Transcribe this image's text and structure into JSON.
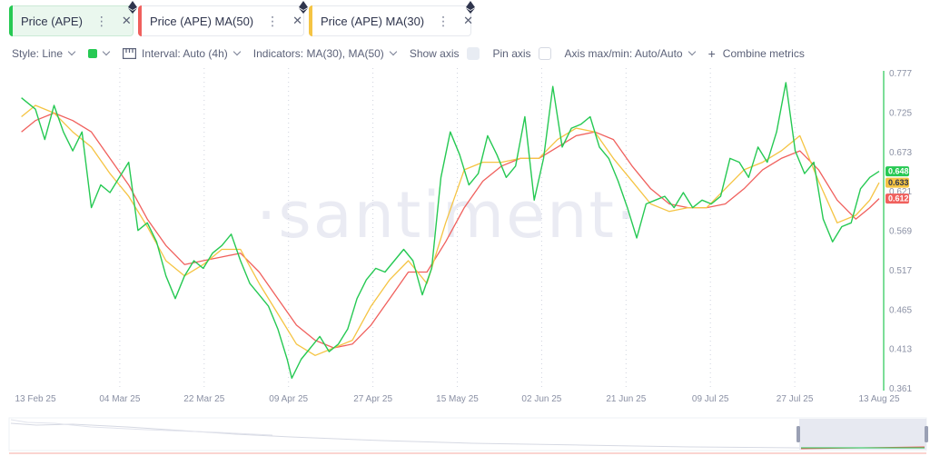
{
  "tabs": [
    {
      "label": "Price (APE)",
      "color": "#26c953",
      "active": true
    },
    {
      "label": "Price (APE) MA(50)",
      "color": "#f0605d",
      "active": false
    },
    {
      "label": "Price (APE) MA(30)",
      "color": "#f5c443",
      "active": false
    }
  ],
  "toolbar": {
    "style": "Style: Line",
    "interval": "Interval: Auto (4h)",
    "indicators": "Indicators: MA(30), MA(50)",
    "show_axis": "Show axis",
    "pin_axis": "Pin axis",
    "axis_maxmin": "Axis max/min: Auto/Auto",
    "combine": "Combine metrics"
  },
  "watermark": "·santiment·",
  "chart_data": {
    "type": "line",
    "x_ticks": [
      "13 Feb 25",
      "04 Mar 25",
      "22 Mar 25",
      "09 Apr 25",
      "27 Apr 25",
      "15 May 25",
      "02 Jun 25",
      "21 Jun 25",
      "09 Jul 25",
      "27 Jul 25",
      "13 Aug 25"
    ],
    "y_ticks": [
      "0.777",
      "0.725",
      "0.673",
      "0.621",
      "0.569",
      "0.517",
      "0.465",
      "0.413",
      "0.361"
    ],
    "ylim": [
      0.361,
      0.777
    ],
    "xlim": [
      "2025-02-13",
      "2025-08-13"
    ],
    "series": [
      {
        "name": "Price (APE)",
        "color": "#26c953",
        "last_value": "0.648",
        "points": [
          [
            "2025-02-10",
            0.745
          ],
          [
            "2025-02-13",
            0.73
          ],
          [
            "2025-02-15",
            0.69
          ],
          [
            "2025-02-17",
            0.735
          ],
          [
            "2025-02-19",
            0.7
          ],
          [
            "2025-02-21",
            0.675
          ],
          [
            "2025-02-23",
            0.7
          ],
          [
            "2025-02-25",
            0.6
          ],
          [
            "2025-02-27",
            0.63
          ],
          [
            "2025-03-01",
            0.62
          ],
          [
            "2025-03-03",
            0.64
          ],
          [
            "2025-03-05",
            0.66
          ],
          [
            "2025-03-07",
            0.57
          ],
          [
            "2025-03-09",
            0.58
          ],
          [
            "2025-03-11",
            0.555
          ],
          [
            "2025-03-13",
            0.51
          ],
          [
            "2025-03-15",
            0.48
          ],
          [
            "2025-03-17",
            0.51
          ],
          [
            "2025-03-19",
            0.53
          ],
          [
            "2025-03-21",
            0.52
          ],
          [
            "2025-03-23",
            0.54
          ],
          [
            "2025-03-25",
            0.55
          ],
          [
            "2025-03-27",
            0.565
          ],
          [
            "2025-03-29",
            0.53
          ],
          [
            "2025-03-31",
            0.5
          ],
          [
            "2025-04-02",
            0.485
          ],
          [
            "2025-04-04",
            0.47
          ],
          [
            "2025-04-06",
            0.44
          ],
          [
            "2025-04-08",
            0.4
          ],
          [
            "2025-04-09",
            0.375
          ],
          [
            "2025-04-11",
            0.4
          ],
          [
            "2025-04-13",
            0.415
          ],
          [
            "2025-04-15",
            0.43
          ],
          [
            "2025-04-17",
            0.41
          ],
          [
            "2025-04-19",
            0.42
          ],
          [
            "2025-04-21",
            0.44
          ],
          [
            "2025-04-23",
            0.48
          ],
          [
            "2025-04-25",
            0.505
          ],
          [
            "2025-04-27",
            0.52
          ],
          [
            "2025-04-29",
            0.515
          ],
          [
            "2025-05-01",
            0.53
          ],
          [
            "2025-05-03",
            0.545
          ],
          [
            "2025-05-05",
            0.53
          ],
          [
            "2025-05-07",
            0.485
          ],
          [
            "2025-05-09",
            0.52
          ],
          [
            "2025-05-11",
            0.64
          ],
          [
            "2025-05-13",
            0.7
          ],
          [
            "2025-05-15",
            0.67
          ],
          [
            "2025-05-17",
            0.63
          ],
          [
            "2025-05-19",
            0.645
          ],
          [
            "2025-05-21",
            0.695
          ],
          [
            "2025-05-23",
            0.67
          ],
          [
            "2025-05-25",
            0.64
          ],
          [
            "2025-05-27",
            0.655
          ],
          [
            "2025-05-29",
            0.72
          ],
          [
            "2025-05-31",
            0.61
          ],
          [
            "2025-06-02",
            0.665
          ],
          [
            "2025-06-04",
            0.76
          ],
          [
            "2025-06-06",
            0.68
          ],
          [
            "2025-06-08",
            0.705
          ],
          [
            "2025-06-10",
            0.71
          ],
          [
            "2025-06-12",
            0.72
          ],
          [
            "2025-06-14",
            0.68
          ],
          [
            "2025-06-16",
            0.665
          ],
          [
            "2025-06-18",
            0.635
          ],
          [
            "2025-06-20",
            0.6
          ],
          [
            "2025-06-22",
            0.56
          ],
          [
            "2025-06-24",
            0.605
          ],
          [
            "2025-06-26",
            0.61
          ],
          [
            "2025-06-28",
            0.615
          ],
          [
            "2025-06-30",
            0.6
          ],
          [
            "2025-07-02",
            0.62
          ],
          [
            "2025-07-04",
            0.6
          ],
          [
            "2025-07-06",
            0.61
          ],
          [
            "2025-07-08",
            0.605
          ],
          [
            "2025-07-10",
            0.615
          ],
          [
            "2025-07-12",
            0.665
          ],
          [
            "2025-07-14",
            0.66
          ],
          [
            "2025-07-16",
            0.64
          ],
          [
            "2025-07-18",
            0.68
          ],
          [
            "2025-07-20",
            0.66
          ],
          [
            "2025-07-22",
            0.7
          ],
          [
            "2025-07-24",
            0.765
          ],
          [
            "2025-07-26",
            0.675
          ],
          [
            "2025-07-28",
            0.645
          ],
          [
            "2025-07-30",
            0.66
          ],
          [
            "2025-08-01",
            0.585
          ],
          [
            "2025-08-03",
            0.555
          ],
          [
            "2025-08-05",
            0.575
          ],
          [
            "2025-08-07",
            0.58
          ],
          [
            "2025-08-09",
            0.625
          ],
          [
            "2025-08-11",
            0.64
          ],
          [
            "2025-08-13",
            0.648
          ]
        ]
      },
      {
        "name": "Price (APE) MA(50)",
        "color": "#f0605d",
        "last_value": "0.612",
        "points": [
          [
            "2025-02-10",
            0.7
          ],
          [
            "2025-02-13",
            0.715
          ],
          [
            "2025-02-17",
            0.725
          ],
          [
            "2025-02-21",
            0.715
          ],
          [
            "2025-02-25",
            0.7
          ],
          [
            "2025-03-01",
            0.665
          ],
          [
            "2025-03-05",
            0.63
          ],
          [
            "2025-03-09",
            0.585
          ],
          [
            "2025-03-13",
            0.55
          ],
          [
            "2025-03-17",
            0.525
          ],
          [
            "2025-03-21",
            0.53
          ],
          [
            "2025-03-25",
            0.535
          ],
          [
            "2025-03-29",
            0.54
          ],
          [
            "2025-04-02",
            0.515
          ],
          [
            "2025-04-06",
            0.48
          ],
          [
            "2025-04-10",
            0.445
          ],
          [
            "2025-04-14",
            0.425
          ],
          [
            "2025-04-18",
            0.415
          ],
          [
            "2025-04-22",
            0.42
          ],
          [
            "2025-04-26",
            0.445
          ],
          [
            "2025-04-30",
            0.48
          ],
          [
            "2025-05-04",
            0.515
          ],
          [
            "2025-05-08",
            0.515
          ],
          [
            "2025-05-12",
            0.555
          ],
          [
            "2025-05-16",
            0.6
          ],
          [
            "2025-05-20",
            0.635
          ],
          [
            "2025-05-24",
            0.655
          ],
          [
            "2025-05-28",
            0.665
          ],
          [
            "2025-06-01",
            0.665
          ],
          [
            "2025-06-05",
            0.68
          ],
          [
            "2025-06-09",
            0.695
          ],
          [
            "2025-06-13",
            0.7
          ],
          [
            "2025-06-17",
            0.69
          ],
          [
            "2025-06-21",
            0.655
          ],
          [
            "2025-06-25",
            0.625
          ],
          [
            "2025-06-29",
            0.605
          ],
          [
            "2025-07-03",
            0.6
          ],
          [
            "2025-07-07",
            0.6
          ],
          [
            "2025-07-11",
            0.605
          ],
          [
            "2025-07-15",
            0.625
          ],
          [
            "2025-07-19",
            0.65
          ],
          [
            "2025-07-23",
            0.665
          ],
          [
            "2025-07-27",
            0.675
          ],
          [
            "2025-07-31",
            0.65
          ],
          [
            "2025-08-04",
            0.61
          ],
          [
            "2025-08-08",
            0.585
          ],
          [
            "2025-08-11",
            0.6
          ],
          [
            "2025-08-13",
            0.612
          ]
        ]
      },
      {
        "name": "Price (APE) MA(30)",
        "color": "#f5c443",
        "last_value": "0.633",
        "points": [
          [
            "2025-02-10",
            0.72
          ],
          [
            "2025-02-13",
            0.735
          ],
          [
            "2025-02-17",
            0.725
          ],
          [
            "2025-02-21",
            0.7
          ],
          [
            "2025-02-25",
            0.68
          ],
          [
            "2025-03-01",
            0.645
          ],
          [
            "2025-03-05",
            0.615
          ],
          [
            "2025-03-09",
            0.575
          ],
          [
            "2025-03-13",
            0.53
          ],
          [
            "2025-03-17",
            0.51
          ],
          [
            "2025-03-21",
            0.525
          ],
          [
            "2025-03-25",
            0.545
          ],
          [
            "2025-03-29",
            0.545
          ],
          [
            "2025-04-02",
            0.5
          ],
          [
            "2025-04-06",
            0.46
          ],
          [
            "2025-04-10",
            0.42
          ],
          [
            "2025-04-14",
            0.405
          ],
          [
            "2025-04-18",
            0.415
          ],
          [
            "2025-04-22",
            0.425
          ],
          [
            "2025-04-26",
            0.47
          ],
          [
            "2025-04-30",
            0.505
          ],
          [
            "2025-05-04",
            0.53
          ],
          [
            "2025-05-08",
            0.5
          ],
          [
            "2025-05-12",
            0.58
          ],
          [
            "2025-05-16",
            0.65
          ],
          [
            "2025-05-20",
            0.66
          ],
          [
            "2025-05-24",
            0.66
          ],
          [
            "2025-05-28",
            0.665
          ],
          [
            "2025-06-01",
            0.665
          ],
          [
            "2025-06-05",
            0.69
          ],
          [
            "2025-06-09",
            0.705
          ],
          [
            "2025-06-13",
            0.7
          ],
          [
            "2025-06-17",
            0.665
          ],
          [
            "2025-06-21",
            0.635
          ],
          [
            "2025-06-25",
            0.605
          ],
          [
            "2025-06-29",
            0.595
          ],
          [
            "2025-07-03",
            0.6
          ],
          [
            "2025-07-07",
            0.6
          ],
          [
            "2025-07-11",
            0.625
          ],
          [
            "2025-07-15",
            0.65
          ],
          [
            "2025-07-19",
            0.66
          ],
          [
            "2025-07-23",
            0.675
          ],
          [
            "2025-07-27",
            0.695
          ],
          [
            "2025-07-31",
            0.635
          ],
          [
            "2025-08-04",
            0.58
          ],
          [
            "2025-08-08",
            0.59
          ],
          [
            "2025-08-11",
            0.61
          ],
          [
            "2025-08-13",
            0.633
          ]
        ]
      }
    ]
  }
}
